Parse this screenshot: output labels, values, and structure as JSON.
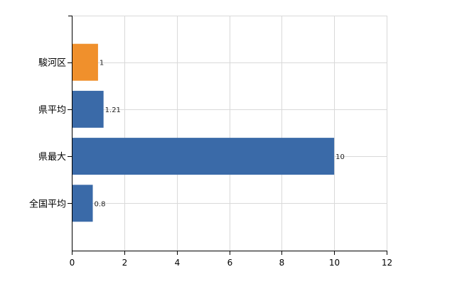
{
  "chart_data": {
    "type": "bar",
    "orientation": "horizontal",
    "categories": [
      "駿河区",
      "県平均",
      "県最大",
      "全国平均"
    ],
    "values": [
      1,
      1.21,
      10,
      0.8
    ],
    "data_labels": [
      "1",
      "1.21",
      "10",
      "0.8"
    ],
    "bar_colors": [
      "#f0902c",
      "#3a6aa8",
      "#3a6aa8",
      "#3a6aa8"
    ],
    "xlim": [
      0,
      12
    ],
    "x_ticks": [
      0,
      2,
      4,
      6,
      8,
      10,
      12
    ],
    "x_tick_labels": [
      "0",
      "2",
      "4",
      "6",
      "8",
      "10",
      "12"
    ],
    "grid": true,
    "title": "",
    "xlabel": "",
    "ylabel": ""
  }
}
